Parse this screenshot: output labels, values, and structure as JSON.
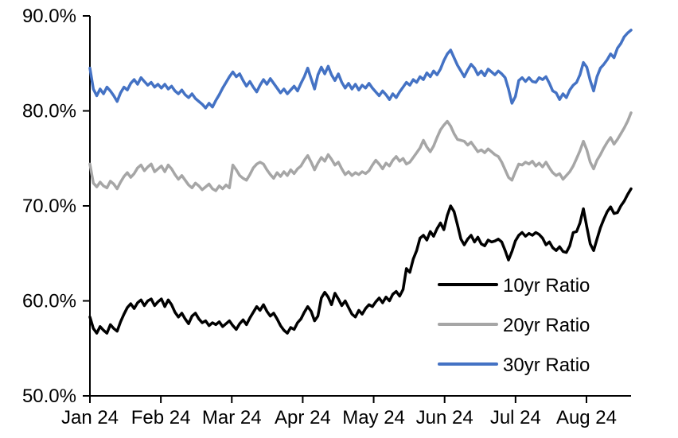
{
  "chart_data": {
    "type": "line",
    "title": "",
    "xlabel": "",
    "ylabel": "",
    "grid": false,
    "legend_position": "inside-bottom-right",
    "ylim": [
      50,
      90
    ],
    "y_tick_labels": [
      "50.0%",
      "60.0%",
      "70.0%",
      "80.0%",
      "90.0%"
    ],
    "y_tick_values": [
      50,
      60,
      70,
      80,
      90
    ],
    "x_tick_labels": [
      "Jan 24",
      "Feb 24",
      "Mar 24",
      "Apr 24",
      "May 24",
      "Jun 24",
      "Jul 24",
      "Aug 24"
    ],
    "x_axis_note": "daily data, Jan 2024 through mid-Aug 2024, months equally spaced",
    "axis_color": "#000000",
    "series": [
      {
        "name": "10yr Ratio",
        "color": "#000000",
        "values": [
          58.3,
          57.1,
          56.6,
          57.3,
          56.9,
          56.6,
          57.5,
          57.1,
          56.8,
          57.8,
          58.6,
          59.3,
          59.7,
          59.2,
          59.8,
          60.1,
          59.5,
          60.0,
          60.2,
          59.5,
          59.9,
          60.2,
          59.4,
          60.1,
          59.6,
          58.8,
          58.3,
          58.7,
          58.1,
          57.6,
          58.4,
          58.7,
          58.1,
          57.7,
          57.9,
          57.4,
          57.7,
          57.5,
          57.8,
          57.3,
          57.6,
          57.9,
          57.4,
          57.0,
          57.6,
          58.0,
          57.5,
          58.2,
          58.8,
          59.4,
          59.0,
          59.6,
          58.9,
          58.4,
          58.7,
          58.1,
          57.4,
          56.9,
          56.6,
          57.2,
          57.0,
          57.7,
          58.1,
          58.8,
          59.4,
          58.9,
          57.9,
          58.4,
          60.3,
          60.9,
          60.4,
          59.6,
          60.8,
          60.2,
          59.5,
          60.0,
          59.3,
          58.6,
          58.3,
          59.0,
          58.6,
          59.2,
          59.6,
          59.4,
          59.9,
          60.3,
          59.8,
          60.4,
          60.0,
          60.7,
          61.0,
          60.5,
          61.2,
          63.4,
          63.0,
          64.4,
          65.3,
          66.6,
          66.9,
          66.4,
          67.3,
          66.8,
          67.6,
          68.2,
          67.5,
          69.0,
          70.0,
          69.4,
          68.0,
          66.5,
          65.9,
          66.5,
          66.9,
          66.2,
          66.7,
          66.0,
          65.8,
          66.4,
          66.2,
          66.3,
          66.5,
          66.2,
          65.3,
          64.3,
          65.2,
          66.3,
          66.9,
          67.2,
          66.8,
          67.1,
          66.9,
          67.2,
          67.0,
          66.6,
          65.9,
          66.2,
          65.6,
          65.3,
          65.7,
          65.2,
          65.1,
          65.8,
          67.2,
          67.3,
          68.2,
          69.7,
          67.8,
          66.0,
          65.3,
          66.5,
          67.7,
          68.6,
          69.4,
          69.9,
          69.2,
          69.3,
          70.0,
          70.5,
          71.2,
          71.8
        ]
      },
      {
        "name": "20yr Ratio",
        "color": "#A6A6A6",
        "values": [
          74.4,
          72.4,
          72.0,
          72.5,
          72.1,
          71.9,
          72.6,
          72.3,
          71.8,
          72.5,
          73.1,
          73.5,
          73.0,
          73.4,
          74.0,
          74.3,
          73.7,
          74.1,
          74.4,
          73.6,
          73.9,
          74.2,
          73.6,
          74.3,
          73.9,
          73.3,
          72.8,
          73.2,
          72.7,
          72.2,
          71.9,
          72.4,
          72.1,
          71.7,
          72.0,
          72.3,
          71.8,
          71.6,
          72.1,
          71.8,
          72.2,
          71.9,
          74.3,
          73.8,
          73.2,
          72.9,
          72.7,
          73.3,
          74.0,
          74.4,
          74.6,
          74.4,
          73.8,
          73.3,
          72.9,
          73.5,
          73.1,
          73.6,
          73.2,
          73.8,
          73.4,
          73.9,
          74.2,
          74.8,
          75.3,
          74.6,
          73.8,
          74.5,
          75.1,
          74.7,
          75.4,
          74.9,
          74.3,
          74.6,
          73.9,
          73.3,
          73.6,
          73.2,
          73.5,
          73.3,
          73.6,
          73.4,
          73.7,
          74.3,
          74.8,
          74.4,
          73.9,
          74.5,
          74.2,
          74.8,
          75.2,
          74.7,
          75.0,
          74.4,
          74.6,
          75.1,
          75.6,
          76.1,
          76.9,
          76.2,
          75.7,
          76.3,
          77.2,
          78.0,
          78.5,
          78.9,
          78.4,
          77.6,
          77.0,
          76.9,
          76.8,
          76.4,
          76.7,
          76.2,
          75.7,
          75.9,
          75.6,
          76.0,
          75.7,
          75.4,
          75.2,
          74.6,
          73.8,
          73.0,
          72.7,
          73.6,
          74.4,
          74.3,
          74.6,
          74.4,
          74.7,
          74.2,
          74.5,
          74.1,
          74.6,
          74.0,
          73.5,
          73.2,
          73.4,
          72.8,
          73.2,
          73.6,
          74.2,
          75.0,
          75.8,
          76.8,
          75.9,
          74.6,
          73.9,
          74.8,
          75.4,
          76.1,
          76.7,
          77.2,
          76.5,
          77.0,
          77.6,
          78.2,
          78.9,
          79.8
        ]
      },
      {
        "name": "30yr Ratio",
        "color": "#4472C4",
        "values": [
          84.5,
          82.3,
          81.6,
          82.3,
          81.8,
          82.5,
          82.1,
          81.6,
          81.0,
          81.9,
          82.5,
          82.2,
          82.9,
          83.3,
          82.8,
          83.5,
          83.1,
          82.7,
          83.0,
          82.5,
          82.8,
          82.4,
          82.8,
          82.3,
          82.6,
          82.1,
          81.8,
          82.2,
          81.7,
          81.4,
          81.8,
          81.3,
          81.0,
          80.7,
          80.3,
          80.8,
          80.4,
          81.1,
          81.7,
          82.4,
          83.0,
          83.6,
          84.1,
          83.6,
          83.9,
          83.2,
          82.6,
          83.1,
          82.5,
          82.0,
          82.7,
          83.3,
          82.8,
          83.4,
          82.9,
          82.4,
          81.9,
          82.3,
          81.8,
          82.2,
          82.6,
          82.1,
          82.9,
          83.6,
          84.5,
          83.4,
          82.3,
          83.8,
          84.6,
          83.9,
          84.7,
          83.8,
          83.2,
          83.9,
          83.0,
          82.4,
          82.9,
          82.3,
          82.8,
          82.2,
          82.7,
          82.4,
          82.9,
          82.4,
          82.0,
          81.6,
          82.1,
          81.7,
          81.2,
          81.8,
          81.4,
          82.0,
          82.5,
          83.0,
          82.7,
          83.3,
          83.0,
          83.6,
          83.3,
          84.0,
          83.6,
          84.2,
          83.8,
          84.4,
          85.3,
          86.0,
          86.4,
          85.6,
          84.8,
          84.2,
          83.6,
          84.3,
          84.9,
          84.5,
          83.8,
          84.2,
          83.7,
          84.4,
          84.1,
          83.8,
          84.2,
          83.9,
          83.5,
          82.3,
          80.8,
          81.5,
          83.2,
          83.5,
          83.1,
          83.5,
          83.1,
          83.0,
          83.5,
          83.3,
          83.6,
          82.9,
          82.1,
          81.9,
          81.2,
          81.8,
          81.4,
          82.2,
          82.7,
          83.0,
          83.8,
          85.1,
          84.6,
          83.2,
          82.1,
          83.6,
          84.5,
          84.9,
          85.4,
          86.0,
          85.6,
          86.6,
          87.1,
          87.8,
          88.2,
          88.5
        ]
      }
    ]
  }
}
